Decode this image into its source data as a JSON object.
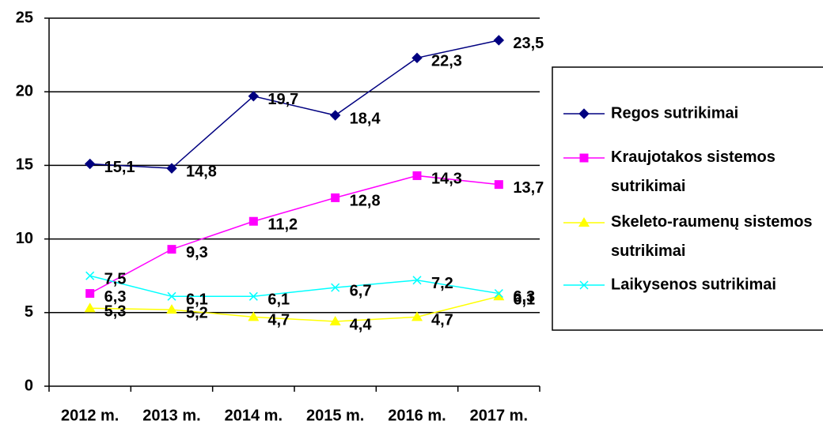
{
  "chart_data": {
    "type": "line",
    "categories": [
      "2012 m.",
      "2013 m.",
      "2014 m.",
      "2015 m.",
      "2016 m.",
      "2017 m."
    ],
    "series": [
      {
        "name": "Regos sutrikimai",
        "color": "#000080",
        "marker": "diamond",
        "values": [
          15.1,
          14.8,
          19.7,
          18.4,
          22.3,
          23.5
        ],
        "value_labels": [
          "15,1",
          "14,8",
          "19,7",
          "18,4",
          "22,3",
          "23,5"
        ]
      },
      {
        "name": "Kraujotakos sistemos sutrikimai",
        "color": "#ff00ff",
        "marker": "square",
        "values": [
          6.3,
          9.3,
          11.2,
          12.8,
          14.3,
          13.7
        ],
        "value_labels": [
          "6,3",
          "9,3",
          "11,2",
          "12,8",
          "14,3",
          "13,7"
        ]
      },
      {
        "name": "Skeleto-raumenų sistemos sutrikimai",
        "color": "#ffff00",
        "marker": "triangle",
        "values": [
          5.3,
          5.2,
          4.7,
          4.4,
          4.7,
          6.1
        ],
        "value_labels": [
          "5,3",
          "5,2",
          "4,7",
          "4,4",
          "4,7",
          "6,1"
        ]
      },
      {
        "name": "Laikysenos sutrikimai",
        "color": "#00ffff",
        "marker": "x",
        "values": [
          7.5,
          6.1,
          6.1,
          6.7,
          7.2,
          6.3
        ],
        "value_labels": [
          "7,5",
          "6,1",
          "6,1",
          "6,7",
          "7,2",
          "6,3"
        ]
      }
    ],
    "ylim": [
      0,
      25
    ],
    "yticks": [
      0,
      5,
      10,
      15,
      20,
      25
    ],
    "grid": true,
    "legend": "right"
  }
}
